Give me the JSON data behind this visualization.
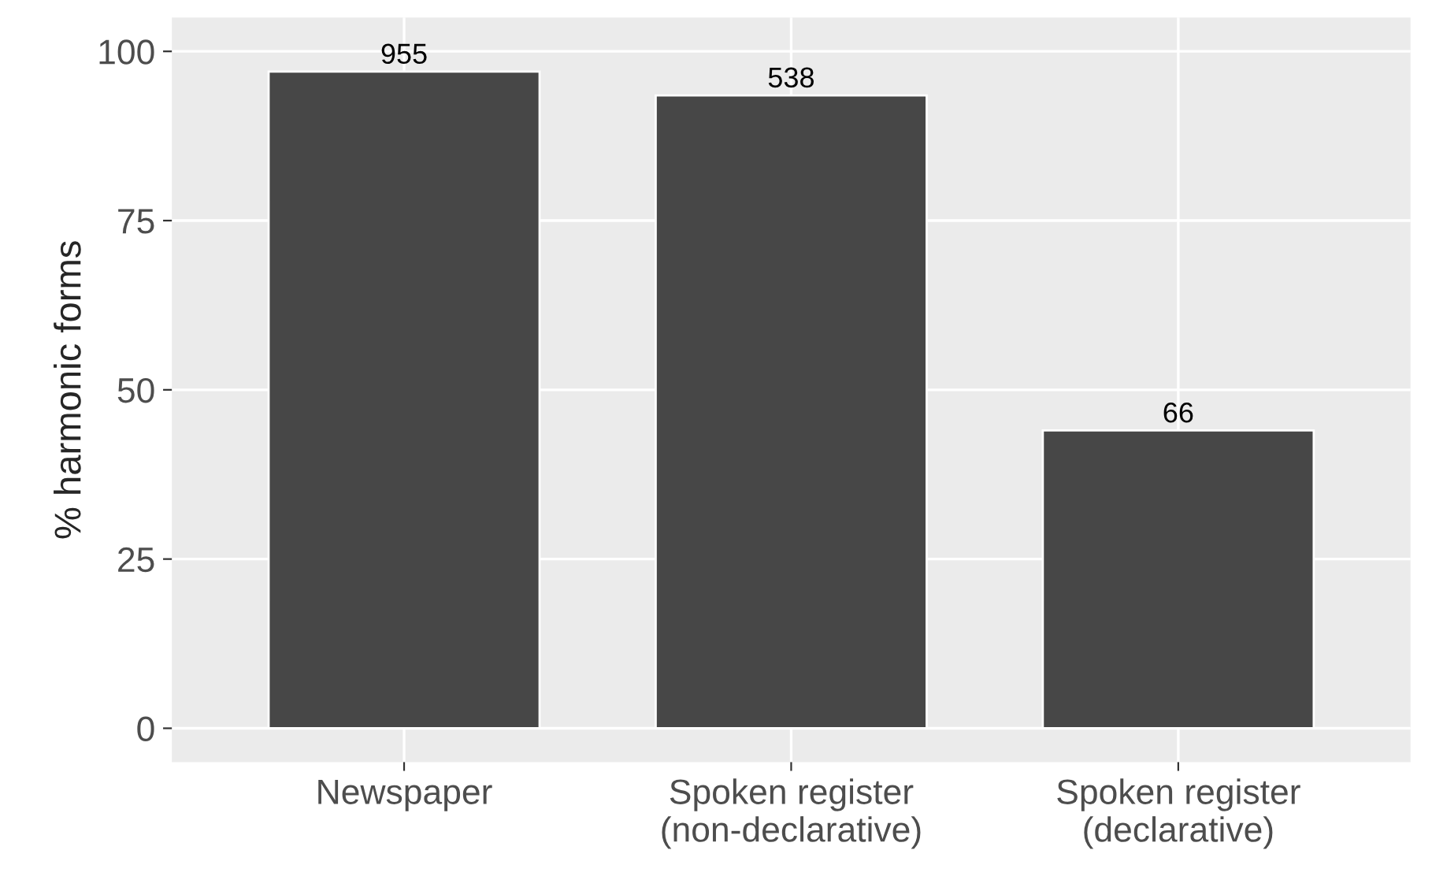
{
  "chart_data": {
    "type": "bar",
    "ylabel": "% harmonic forms",
    "categories": [
      "Newspaper",
      "Spoken register\n(non-declarative)",
      "Spoken register\n(declarative)"
    ],
    "values": [
      97,
      93.5,
      44
    ],
    "color": "#474747",
    "annotations": [
      {
        "text": "955",
        "x": "Newspaper",
        "y": 97
      },
      {
        "text": "538",
        "x": "Spoken register\n(non-declarative)",
        "y": 93.5
      },
      {
        "text": "66",
        "x": "Spoken register\n(declarative)",
        "y": 44
      }
    ],
    "ylim": [
      -5,
      105
    ],
    "yticks": [
      0,
      25,
      50,
      75,
      100
    ],
    "grid": true
  }
}
